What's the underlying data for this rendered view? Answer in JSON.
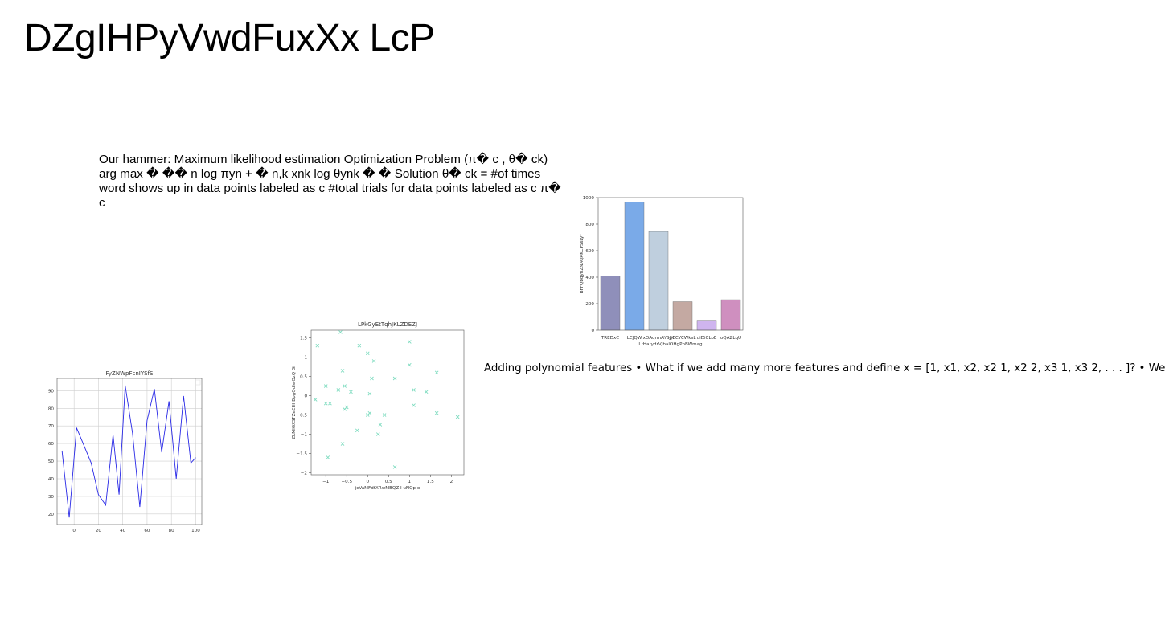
{
  "slide": {
    "title": "DZgIHPyVwdFuxXx LcP",
    "hammer_text": "Our hammer: Maximum likelihood estimation Optimization Problem (π� c , θ� ck) arg max � �� n log πyn + � n,k xnk log θynk � � Solution θ� ck = #of times word shows up in data points labeled as c #total trials for data points labeled as c π� c",
    "poly_text": "Adding polynomial features • What if we add many more features and define x = [1, x1, x2, x2 1, x2 2, x3 1, x3 2, . . . ]? • We"
  },
  "chart_data": [
    {
      "type": "bar",
      "title": "",
      "xlabel": "LrHarydrVJbalOHgPhBWmag",
      "ylabel": "BFFQbqyhZNAQAKCPSsLyf",
      "categories": [
        "TREDxC",
        "LCJQW",
        "xOAqrmAYSJH",
        "gCCYCWksL",
        "uiDiCLoE",
        "oQAZLqU"
      ],
      "values": [
        410,
        965,
        745,
        215,
        75,
        230
      ],
      "colors": [
        "#8f8fba",
        "#7aaae8",
        "#bfcfde",
        "#c4a9a2",
        "#cfb5ef",
        "#cf8fbf"
      ],
      "ylim": [
        0,
        1000
      ],
      "yticks": [
        0,
        200,
        400,
        600,
        800,
        1000
      ],
      "grid": false
    },
    {
      "type": "scatter",
      "title": "LPkGyEtTqhJKLZDEZJ",
      "xlabel": "jcVaMFdtXRwMBQZ I uNQp o",
      "ylabel": "ZkMIGXSFZeEHhBpgQdIwOzQ Gi",
      "marker": "x",
      "color": "#7fdcc0",
      "xlim": [
        -1.35,
        2.3
      ],
      "ylim": [
        -2.05,
        1.7
      ],
      "xticks": [
        -1.0,
        -0.5,
        0.0,
        0.5,
        1.0,
        1.5,
        2.0
      ],
      "yticks": [
        -2.0,
        -1.5,
        -1.0,
        -0.5,
        0.0,
        0.5,
        1.0,
        1.5
      ],
      "x": [
        -0.65,
        -1.2,
        -0.2,
        0.0,
        1.0,
        0.15,
        -0.6,
        -1.0,
        0.1,
        0.65,
        1.0,
        1.65,
        -0.55,
        -0.7,
        -0.4,
        0.05,
        1.1,
        1.4,
        -1.25,
        -1.0,
        -0.9,
        -0.5,
        -0.55,
        0.05,
        0.0,
        1.1,
        1.65,
        2.15,
        0.3,
        -0.25,
        0.25,
        0.4,
        -0.6,
        -0.95,
        0.65
      ],
      "y": [
        1.65,
        1.3,
        1.3,
        1.1,
        1.4,
        0.9,
        0.65,
        0.25,
        0.45,
        0.45,
        0.8,
        0.6,
        0.25,
        0.15,
        0.1,
        0.05,
        0.15,
        0.1,
        -0.1,
        -0.2,
        -0.2,
        -0.3,
        -0.35,
        -0.45,
        -0.5,
        -0.25,
        -0.45,
        -0.55,
        -0.75,
        -0.9,
        -1.0,
        -0.5,
        -1.25,
        -1.6,
        -1.85
      ],
      "grid": false
    },
    {
      "type": "line",
      "title": "FyZNWpFcnIYSfS",
      "xlabel": "",
      "ylabel": "",
      "color": "#2828e6",
      "xlim": [
        -14,
        105
      ],
      "ylim": [
        14,
        97
      ],
      "xticks": [
        0,
        20,
        40,
        60,
        80,
        100
      ],
      "yticks": [
        20,
        30,
        40,
        50,
        60,
        70,
        80,
        90
      ],
      "x": [
        -10,
        -4,
        2,
        8,
        14,
        20,
        26,
        32,
        37,
        42,
        48,
        54,
        60,
        66,
        72,
        78,
        84,
        90,
        96,
        100
      ],
      "y": [
        56,
        18,
        69,
        59,
        49,
        31,
        25,
        65,
        31,
        93,
        66,
        24,
        73,
        91,
        55,
        84,
        40,
        87,
        49,
        52
      ],
      "grid": true
    }
  ]
}
